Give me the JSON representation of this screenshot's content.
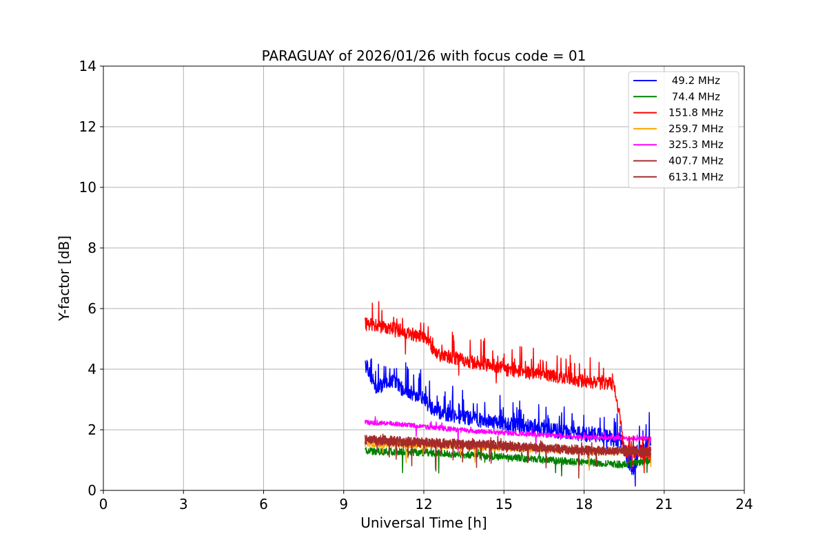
{
  "chart_data": {
    "type": "line",
    "title": "PARAGUAY of 2026/01/26 with focus code = 01",
    "xlabel": "Universal Time [h]",
    "ylabel": "Y-factor [dB]",
    "xlim": [
      0,
      24
    ],
    "ylim": [
      0,
      14
    ],
    "xticks": [
      0,
      3,
      6,
      9,
      12,
      15,
      18,
      21,
      24
    ],
    "yticks": [
      0,
      2,
      4,
      6,
      8,
      10,
      12,
      14
    ],
    "grid": true,
    "legend_position": "top-right",
    "series": [
      {
        "name": " 49.2 MHz",
        "color": "#0000ff",
        "base": [
          [
            9.8,
            4.2
          ],
          [
            10.2,
            3.4
          ],
          [
            10.8,
            3.6
          ],
          [
            11.3,
            3.3
          ],
          [
            12.0,
            3.0
          ],
          [
            12.4,
            2.6
          ],
          [
            13.5,
            2.4
          ],
          [
            15.0,
            2.2
          ],
          [
            16.5,
            2.0
          ],
          [
            17.5,
            1.9
          ],
          [
            18.7,
            1.8
          ],
          [
            19.4,
            1.6
          ],
          [
            19.8,
            0.6
          ],
          [
            20.1,
            1.3
          ],
          [
            20.5,
            1.6
          ]
        ],
        "noise": 0.25,
        "spike_prob": 0.12,
        "spike": 0.9,
        "dip_prob": 0.01,
        "dip": 0.6
      },
      {
        "name": " 74.4 MHz",
        "color": "#008000",
        "base": [
          [
            9.8,
            1.3
          ],
          [
            12.0,
            1.25
          ],
          [
            15.0,
            1.1
          ],
          [
            17.5,
            0.95
          ],
          [
            19.5,
            0.85
          ],
          [
            20.5,
            1.0
          ]
        ],
        "noise": 0.12,
        "spike_prob": 0.02,
        "spike": 0.3,
        "dip_prob": 0.015,
        "dip": 0.9
      },
      {
        "name": "151.8 MHz",
        "color": "#ff0000",
        "base": [
          [
            9.8,
            5.5
          ],
          [
            11.0,
            5.3
          ],
          [
            12.2,
            5.0
          ],
          [
            12.4,
            4.5
          ],
          [
            13.5,
            4.3
          ],
          [
            15.0,
            4.0
          ],
          [
            16.5,
            3.8
          ],
          [
            18.0,
            3.6
          ],
          [
            19.1,
            3.5
          ],
          [
            19.35,
            2.4
          ],
          [
            19.5,
            1.3
          ],
          [
            20.5,
            1.2
          ]
        ],
        "noise": 0.22,
        "spike_prob": 0.1,
        "spike": 0.7,
        "dip_prob": 0.01,
        "dip": 0.8
      },
      {
        "name": "259.7 MHz",
        "color": "#ffa500",
        "base": [
          [
            9.8,
            1.55
          ],
          [
            12.0,
            1.5
          ],
          [
            15.0,
            1.4
          ],
          [
            18.0,
            1.3
          ],
          [
            20.5,
            1.25
          ]
        ],
        "noise": 0.12,
        "spike_prob": 0.02,
        "spike": 0.2,
        "dip_prob": 0.012,
        "dip": 0.8
      },
      {
        "name": "325.3 MHz",
        "color": "#ff00ff",
        "base": [
          [
            9.8,
            2.25
          ],
          [
            11.0,
            2.2
          ],
          [
            12.0,
            2.1
          ],
          [
            14.0,
            1.95
          ],
          [
            16.0,
            1.85
          ],
          [
            18.0,
            1.75
          ],
          [
            20.5,
            1.7
          ]
        ],
        "noise": 0.08,
        "spike_prob": 0.02,
        "spike": 0.2,
        "dip_prob": 0.004,
        "dip": 0.9
      },
      {
        "name": "407.7 MHz",
        "color": "#a52a2a",
        "base": [
          [
            9.8,
            1.7
          ],
          [
            12.0,
            1.6
          ],
          [
            15.0,
            1.5
          ],
          [
            18.0,
            1.35
          ],
          [
            20.5,
            1.3
          ]
        ],
        "noise": 0.14,
        "spike_prob": 0.02,
        "spike": 0.2,
        "dip_prob": 0.015,
        "dip": 1.0
      },
      {
        "name": "613.1 MHz",
        "color": "#a52a2a",
        "base": [
          [
            9.8,
            1.65
          ],
          [
            12.0,
            1.55
          ],
          [
            15.0,
            1.45
          ],
          [
            18.0,
            1.3
          ],
          [
            20.5,
            1.25
          ]
        ],
        "noise": 0.14,
        "spike_prob": 0.02,
        "spike": 0.2,
        "dip_prob": 0.015,
        "dip": 1.0
      }
    ]
  }
}
